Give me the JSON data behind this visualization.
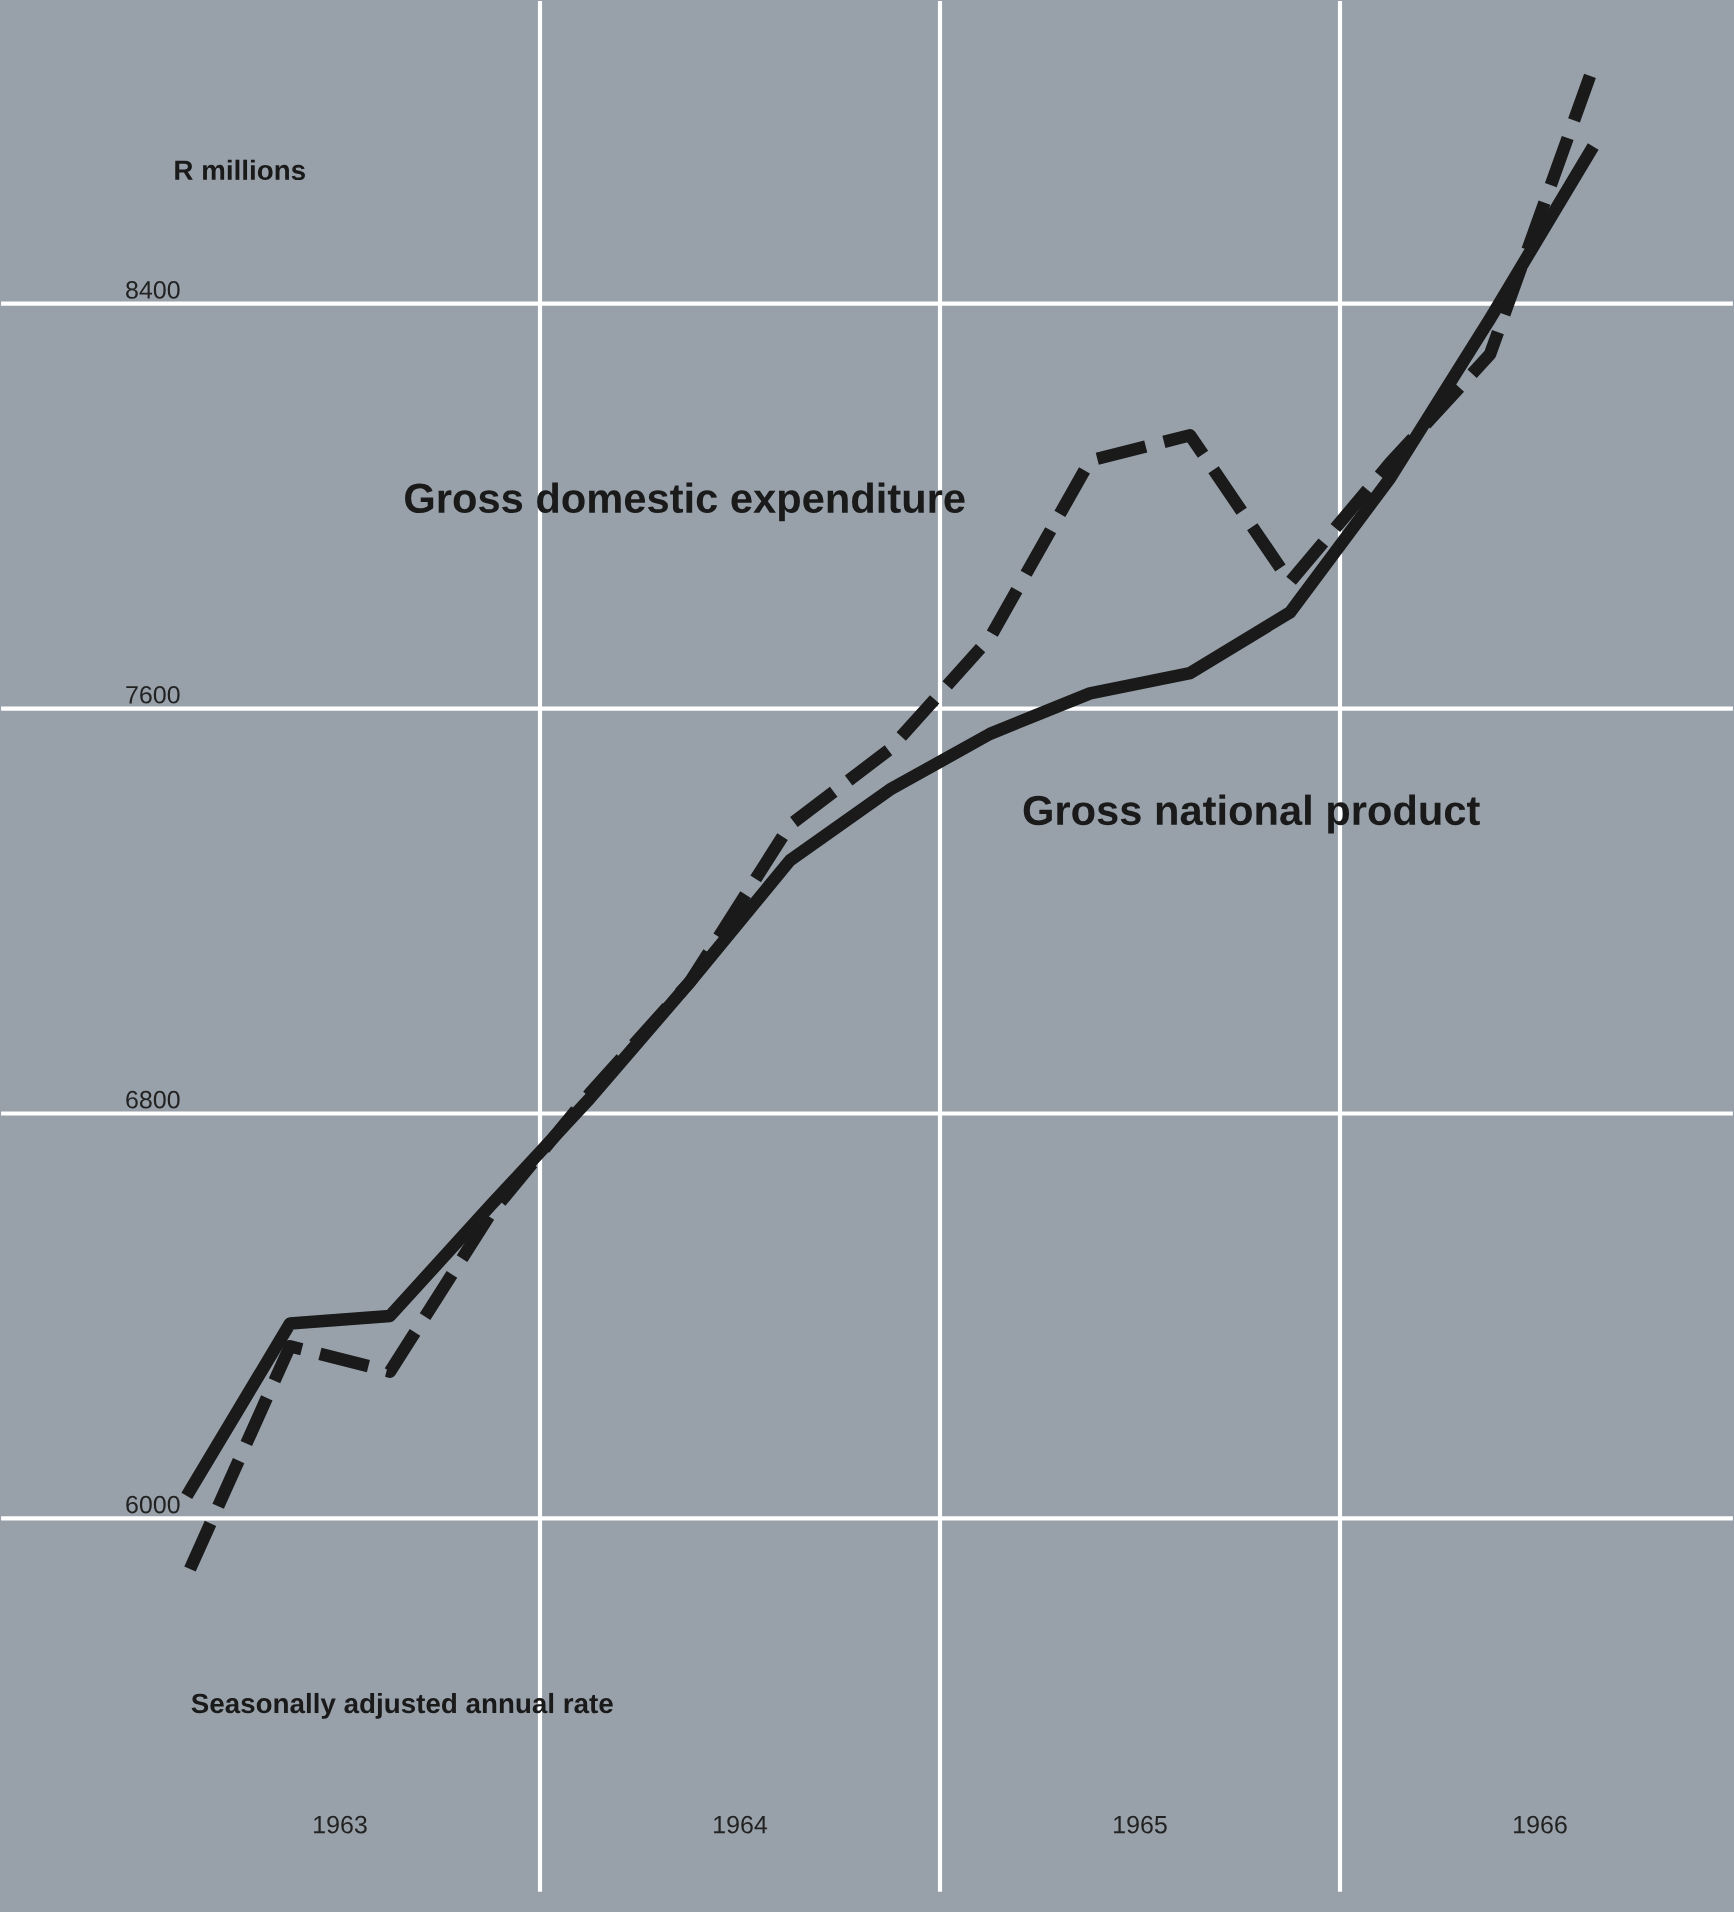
{
  "chart_data": {
    "type": "line",
    "x": [
      1963.125,
      1963.375,
      1963.625,
      1963.875,
      1964.125,
      1964.375,
      1964.625,
      1964.875,
      1965.125,
      1965.375,
      1965.625,
      1965.875,
      1966.125,
      1966.375,
      1966.625
    ],
    "series": [
      {
        "name": "Gross domestic expenditure",
        "color": "#1a1a1a",
        "line_style": "dashed",
        "values": [
          5900,
          6340,
          6290,
          6600,
          6840,
          7060,
          7370,
          7520,
          7740,
          8090,
          8140,
          7850,
          8085,
          8300,
          8850
        ]
      },
      {
        "name": "Gross national product",
        "color": "#1a1a1a",
        "line_style": "solid",
        "values": [
          6055,
          6385,
          6400,
          6617,
          6830,
          7060,
          7300,
          7440,
          7550,
          7630,
          7670,
          7790,
          8055,
          8370,
          8700
        ]
      }
    ],
    "xlim": [
      1962.65,
      1966.985
    ],
    "xticks": [
      {
        "value": 1963.5,
        "label": "1963"
      },
      {
        "value": 1964.5,
        "label": "1964"
      },
      {
        "value": 1965.5,
        "label": "1965"
      },
      {
        "value": 1966.5,
        "label": "1966"
      }
    ],
    "ylim": [
      5260,
      9000
    ],
    "yticks": [
      6000,
      6800,
      7600,
      8400
    ],
    "grid": "y",
    "ref_lines": [
      {
        "axis": "x",
        "value": 1964,
        "color": "#ffffff"
      },
      {
        "axis": "x",
        "value": 1965,
        "color": "#ffffff"
      },
      {
        "axis": "x",
        "value": 1966,
        "color": "#ffffff"
      }
    ],
    "annotations": [
      "R millions",
      "Seasonally adjusted annual rate"
    ],
    "legend": false
  }
}
